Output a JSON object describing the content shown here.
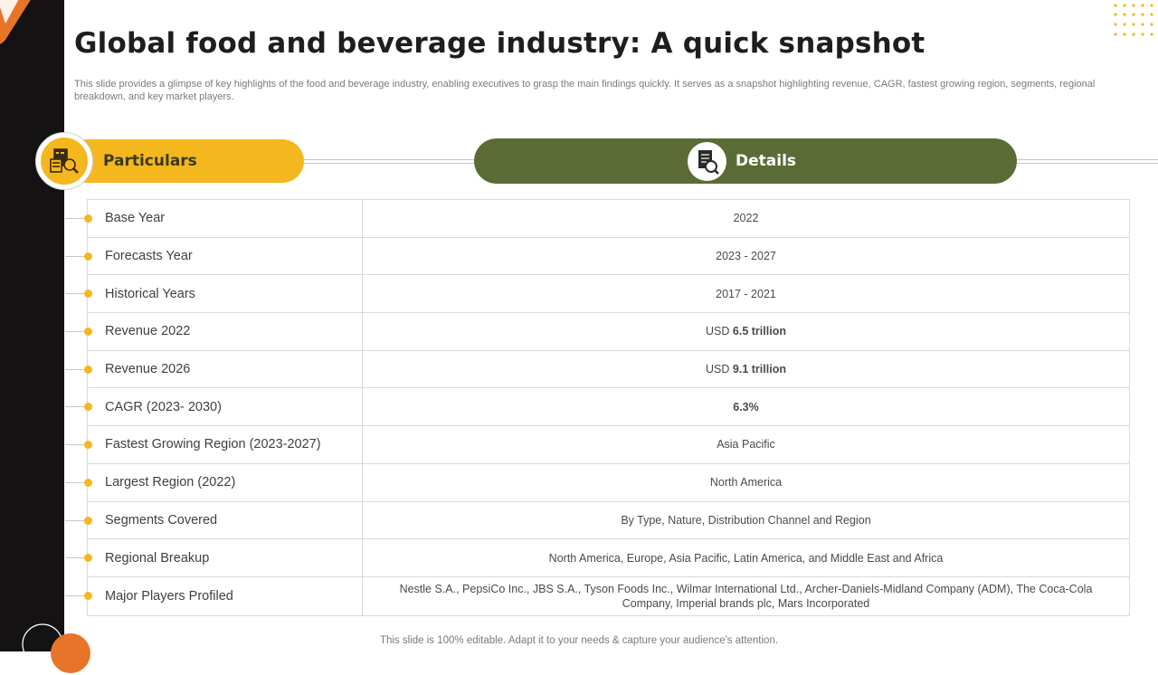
{
  "title": "Global food and beverage industry: A quick snapshot",
  "subtitle": "This slide provides a glimpse of key highlights of the food and beverage industry, enabling executives to grasp the main findings quickly. It serves as a snapshot highlighting revenue, CAGR, fastest growing region, segments, regional breakdown, and key market players.",
  "headers": {
    "particulars": "Particulars",
    "details": "Details"
  },
  "rows": [
    {
      "particular": "Base Year",
      "detail": "2022"
    },
    {
      "particular": "Forecasts Year",
      "detail": "2023 - 2027"
    },
    {
      "particular": "Historical Years",
      "detail": "2017 - 2021"
    },
    {
      "particular": "Revenue 2022",
      "detail_prefix": "USD",
      "detail_bold": "6.5 trillion"
    },
    {
      "particular": "Revenue 2026",
      "detail_prefix": "USD",
      "detail_bold": "9.1 trillion"
    },
    {
      "particular": "CAGR (2023- 2030)",
      "detail_bold": "6.3%"
    },
    {
      "particular": "Fastest Growing Region (2023-2027)",
      "detail": "Asia Pacific"
    },
    {
      "particular": "Largest Region (2022)",
      "detail": "North America"
    },
    {
      "particular": "Segments Covered",
      "detail": "By Type,  Nature,  Distribution Channel  and Region"
    },
    {
      "particular": "Regional Breakup",
      "detail": "North America,  Europe,  Asia Pacific,  Latin America,  and Middle East and Africa"
    },
    {
      "particular": "Major Players Profiled",
      "detail": "Nestle S.A., PepsiCo Inc., JBS S.A., Tyson Foods Inc., Wilmar International Ltd., Archer-Daniels-Midland  Company (ADM), The Coca-Cola Company,  Imperial  brands  plc,  Mars Incorporated"
    }
  ],
  "footer": "This slide is 100% editable. Adapt it to your needs & capture your audience's attention.",
  "icons": {
    "particulars": "analytics-report-icon",
    "details": "document-search-icon"
  },
  "colors": {
    "accent_yellow": "#f4b71d",
    "accent_green": "#5b6b35",
    "accent_orange": "#e8742a",
    "sidebar": "#141212"
  }
}
